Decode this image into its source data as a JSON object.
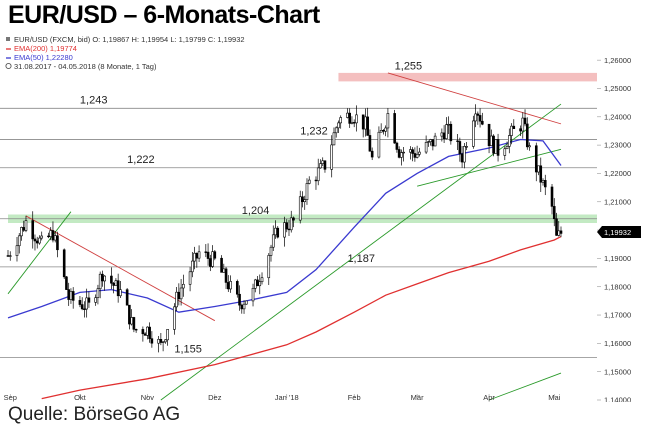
{
  "title": "EUR/USD – 6-Monats-Chart",
  "footer": "Quelle: BörseGo AG",
  "legend": {
    "ohlc": "EUR/USD (FXCM, bid)  O: 1,19867  H: 1,19954  L: 1,19799  C: 1,19932",
    "ema200": "EMA(200)  1,19774",
    "ema50": "EMA(50)  1,22280",
    "range": "31.08.2017 - 04.05.2018  (8 Monate, 1 Tag)"
  },
  "colors": {
    "ema200": "#e03030",
    "ema50": "#3a3ad0",
    "support_trend": "#2a9a2a",
    "resistance_trend": "#d04040",
    "support_zone": "#b8e6b8",
    "resistance_zone": "#f2b4b4",
    "level_line": "#888888",
    "candle": "#000000",
    "price_box": "#000000"
  },
  "chart_data": {
    "type": "candlestick",
    "y_axis_side": "right",
    "ylim": [
      1.14,
      1.265
    ],
    "y_ticks": [
      "1,26000",
      "1,25000",
      "1,24000",
      "1,23000",
      "1,22000",
      "1,21000",
      "1,20000",
      "1,19000",
      "1,18000",
      "1,17000",
      "1,16000",
      "1,15000",
      "1,14000"
    ],
    "y_tick_values": [
      1.26,
      1.25,
      1.24,
      1.23,
      1.22,
      1.21,
      1.2,
      1.19,
      1.18,
      1.17,
      1.16,
      1.15,
      1.14
    ],
    "x_range": [
      "2017-08-31",
      "2018-05-04"
    ],
    "x_ticks": [
      {
        "label": "Sep",
        "date": "2017-09-01"
      },
      {
        "label": "Okt",
        "date": "2017-10-02"
      },
      {
        "label": "Nov",
        "date": "2017-11-01"
      },
      {
        "label": "Dez",
        "date": "2017-12-01"
      },
      {
        "label": "Jan '18",
        "date": "2018-01-02"
      },
      {
        "label": "Feb",
        "date": "2018-02-01"
      },
      {
        "label": "Mär",
        "date": "2018-03-01"
      },
      {
        "label": "Apr",
        "date": "2018-04-02"
      },
      {
        "label": "Mai",
        "date": "2018-05-01"
      }
    ],
    "last_price": "1,19932",
    "last_value": 1.19932,
    "levels": [
      {
        "label": "1,255",
        "value": 1.255,
        "label_date": "2018-02-19",
        "line": false
      },
      {
        "label": "1,243",
        "value": 1.243,
        "label_date": "2017-10-02",
        "line": true
      },
      {
        "label": "1,232",
        "value": 1.232,
        "label_date": "2018-01-08",
        "line": true
      },
      {
        "label": "1,222",
        "value": 1.222,
        "label_date": "2017-10-23",
        "line": true
      },
      {
        "label": "1,204",
        "value": 1.204,
        "label_date": "2017-12-13",
        "line": true
      },
      {
        "label": "1,187",
        "value": 1.187,
        "label_date": "2018-01-29",
        "line": true
      },
      {
        "label": "1,155",
        "value": 1.155,
        "label_date": "2017-11-13",
        "line": true
      }
    ],
    "zones": [
      {
        "name": "resistance",
        "from": 1.2525,
        "to": 1.2555,
        "start": "2018-01-25"
      },
      {
        "name": "support",
        "from": 1.2025,
        "to": 1.2055,
        "start": "2017-08-31"
      }
    ],
    "trendlines": [
      {
        "type": "support",
        "points": [
          [
            "2017-08-31",
            1.1775
          ],
          [
            "2017-09-28",
            1.2065
          ]
        ]
      },
      {
        "type": "support",
        "points": [
          [
            "2017-11-07",
            1.14
          ],
          [
            "2018-05-04",
            1.2445
          ]
        ]
      },
      {
        "type": "support",
        "points": [
          [
            "2018-03-01",
            1.2155
          ],
          [
            "2018-05-04",
            1.2285
          ]
        ]
      },
      {
        "type": "support",
        "points": [
          [
            "2018-04-02",
            1.14
          ],
          [
            "2018-05-04",
            1.1495
          ]
        ]
      },
      {
        "type": "resistance",
        "points": [
          [
            "2017-09-08",
            1.205
          ],
          [
            "2017-12-01",
            1.168
          ]
        ]
      },
      {
        "type": "resistance",
        "points": [
          [
            "2018-02-16",
            1.2555
          ],
          [
            "2018-05-04",
            1.2375
          ]
        ]
      }
    ],
    "ema50": [
      [
        "2017-08-31",
        1.169
      ],
      [
        "2017-09-15",
        1.173
      ],
      [
        "2017-10-02",
        1.178
      ],
      [
        "2017-10-16",
        1.179
      ],
      [
        "2017-11-01",
        1.176
      ],
      [
        "2017-11-15",
        1.171
      ],
      [
        "2017-12-01",
        1.173
      ],
      [
        "2017-12-15",
        1.175
      ],
      [
        "2018-01-02",
        1.178
      ],
      [
        "2018-01-15",
        1.186
      ],
      [
        "2018-02-01",
        1.201
      ],
      [
        "2018-02-15",
        1.213
      ],
      [
        "2018-03-01",
        1.22
      ],
      [
        "2018-03-15",
        1.226
      ],
      [
        "2018-04-02",
        1.229
      ],
      [
        "2018-04-16",
        1.232
      ],
      [
        "2018-04-26",
        1.2315
      ],
      [
        "2018-05-04",
        1.2228
      ]
    ],
    "ema200": [
      [
        "2017-09-15",
        1.1405
      ],
      [
        "2017-10-02",
        1.1435
      ],
      [
        "2017-11-01",
        1.1475
      ],
      [
        "2017-12-01",
        1.1525
      ],
      [
        "2018-01-02",
        1.1595
      ],
      [
        "2018-01-15",
        1.164
      ],
      [
        "2018-02-01",
        1.171
      ],
      [
        "2018-02-15",
        1.177
      ],
      [
        "2018-03-01",
        1.181
      ],
      [
        "2018-03-15",
        1.185
      ],
      [
        "2018-04-02",
        1.189
      ],
      [
        "2018-04-16",
        1.193
      ],
      [
        "2018-05-01",
        1.1965
      ],
      [
        "2018-05-04",
        1.1977
      ]
    ],
    "close_path": [
      [
        "2017-08-31",
        1.191
      ],
      [
        "2017-09-08",
        1.203
      ],
      [
        "2017-09-15",
        1.195
      ],
      [
        "2017-09-20",
        1.199
      ],
      [
        "2017-09-27",
        1.176
      ],
      [
        "2017-10-02",
        1.174
      ],
      [
        "2017-10-06",
        1.173
      ],
      [
        "2017-10-12",
        1.185
      ],
      [
        "2017-10-20",
        1.178
      ],
      [
        "2017-10-26",
        1.165
      ],
      [
        "2017-11-01",
        1.165
      ],
      [
        "2017-11-07",
        1.159
      ],
      [
        "2017-11-15",
        1.178
      ],
      [
        "2017-11-24",
        1.192
      ],
      [
        "2017-12-01",
        1.189
      ],
      [
        "2017-12-12",
        1.174
      ],
      [
        "2017-12-18",
        1.178
      ],
      [
        "2017-12-29",
        1.2
      ],
      [
        "2018-01-05",
        1.203
      ],
      [
        "2018-01-12",
        1.217
      ],
      [
        "2018-01-19",
        1.223
      ],
      [
        "2018-01-25",
        1.239
      ],
      [
        "2018-01-31",
        1.241
      ],
      [
        "2018-02-06",
        1.237
      ],
      [
        "2018-02-09",
        1.225
      ],
      [
        "2018-02-16",
        1.241
      ],
      [
        "2018-02-21",
        1.228
      ],
      [
        "2018-03-01",
        1.227
      ],
      [
        "2018-03-08",
        1.231
      ],
      [
        "2018-03-14",
        1.236
      ],
      [
        "2018-03-21",
        1.226
      ],
      [
        "2018-03-27",
        1.244
      ],
      [
        "2018-04-02",
        1.232
      ],
      [
        "2018-04-06",
        1.228
      ],
      [
        "2018-04-12",
        1.234
      ],
      [
        "2018-04-17",
        1.238
      ],
      [
        "2018-04-20",
        1.228
      ],
      [
        "2018-04-25",
        1.218
      ],
      [
        "2018-04-30",
        1.208
      ],
      [
        "2018-05-02",
        1.197
      ],
      [
        "2018-05-04",
        1.199
      ]
    ]
  }
}
